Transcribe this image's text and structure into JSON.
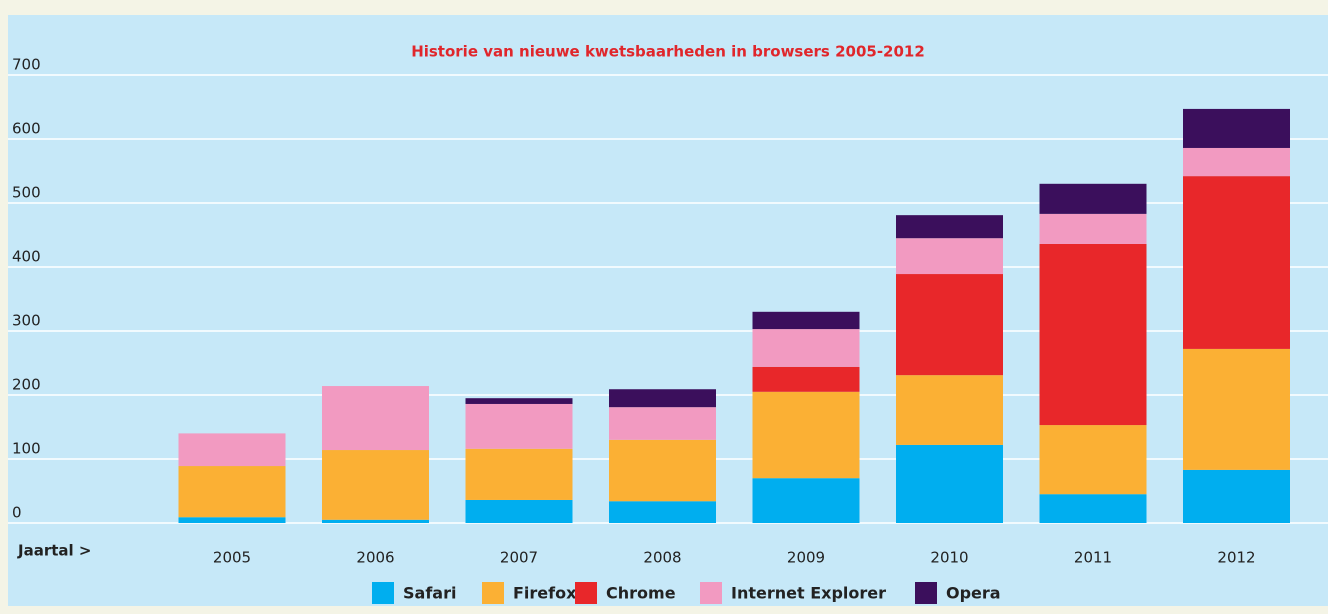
{
  "chart_data": {
    "type": "stacked_bar",
    "title": "Historie van nieuwe kwetsbaarheden in browsers 2005-2012",
    "x_label": "Jaartal >",
    "categories": [
      "2005",
      "2006",
      "2007",
      "2008",
      "2009",
      "2010",
      "2011",
      "2012"
    ],
    "series": [
      {
        "name": "Safari",
        "color": "#00aeef",
        "values": [
          9,
          5,
          36,
          34,
          70,
          122,
          45,
          83
        ]
      },
      {
        "name": "Firefox",
        "color": "#fbb034",
        "values": [
          80,
          109,
          80,
          96,
          135,
          109,
          108,
          189
        ]
      },
      {
        "name": "Chrome",
        "color": "#e8272a",
        "values": [
          0,
          0,
          0,
          0,
          39,
          158,
          283,
          270
        ]
      },
      {
        "name": "Internet Explorer",
        "color": "#f29ac1",
        "values": [
          51,
          100,
          70,
          51,
          59,
          56,
          47,
          44
        ]
      },
      {
        "name": "Opera",
        "color": "#3b0f5c",
        "values": [
          0,
          0,
          9,
          28,
          27,
          36,
          47,
          61
        ]
      }
    ],
    "ylim": [
      0,
      700
    ],
    "yticks": [
      0,
      100,
      200,
      300,
      400,
      500,
      600,
      700
    ],
    "grid": true,
    "legend": "bottom"
  }
}
